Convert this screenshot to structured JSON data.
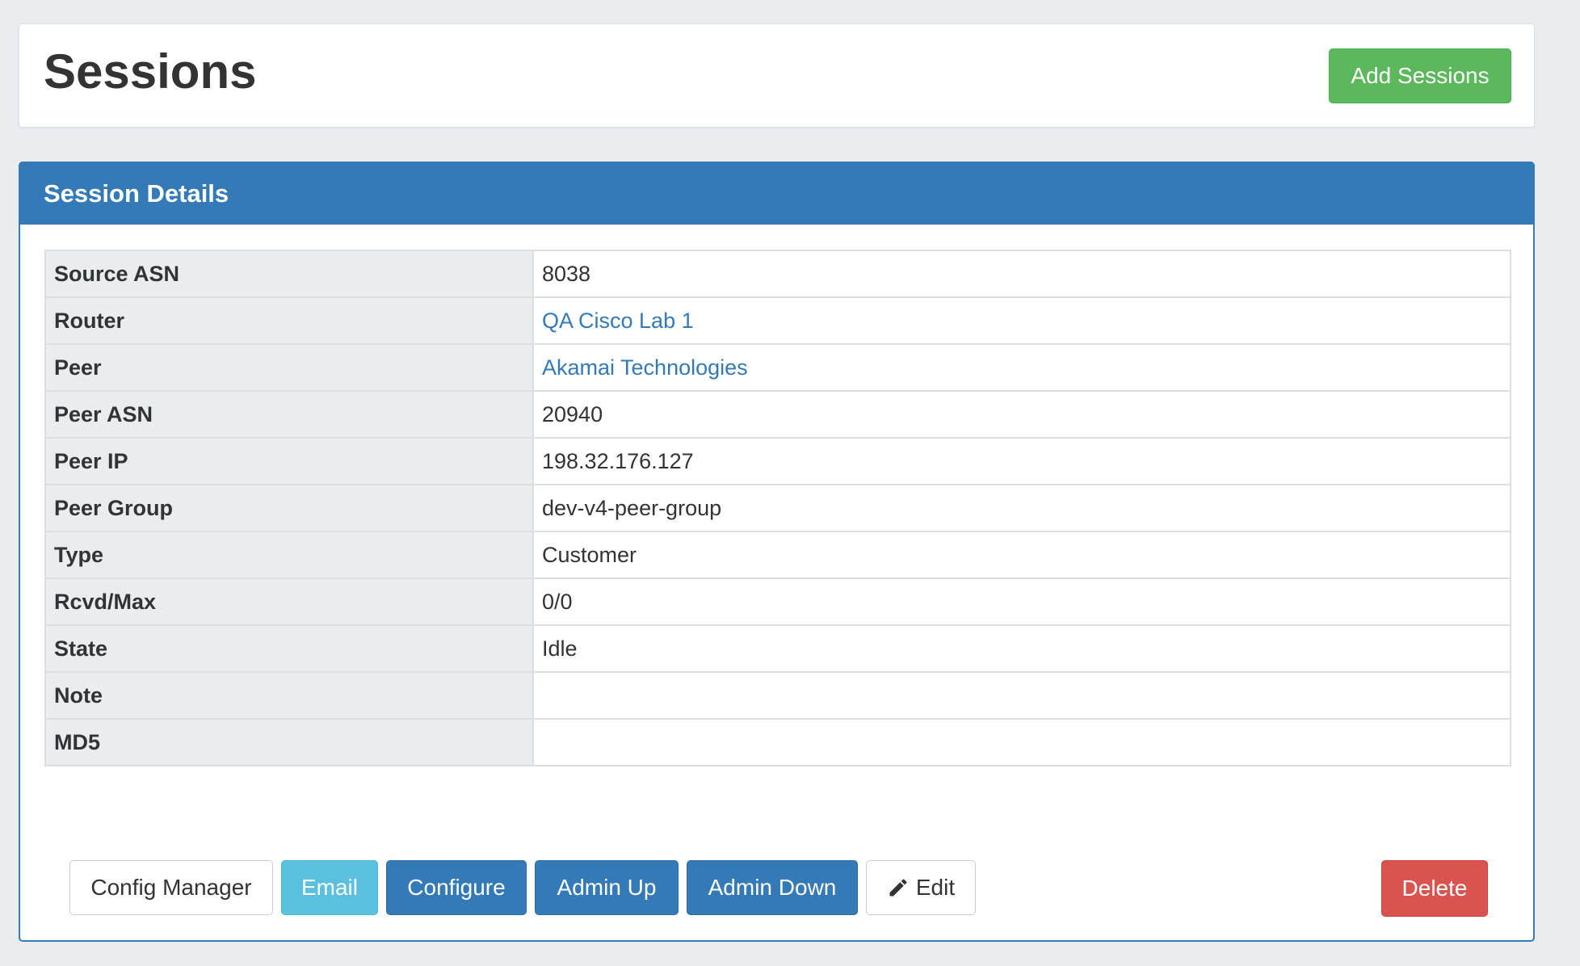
{
  "header": {
    "title": "Sessions",
    "add_button": "Add Sessions"
  },
  "panel": {
    "title": "Session Details",
    "rows": [
      {
        "label": "Source ASN",
        "value": "8038",
        "link": false
      },
      {
        "label": "Router",
        "value": "QA Cisco Lab 1",
        "link": true
      },
      {
        "label": "Peer",
        "value": "Akamai Technologies",
        "link": true
      },
      {
        "label": "Peer ASN",
        "value": "20940",
        "link": false
      },
      {
        "label": "Peer IP",
        "value": "198.32.176.127",
        "link": false
      },
      {
        "label": "Peer Group",
        "value": "dev-v4-peer-group",
        "link": false
      },
      {
        "label": "Type",
        "value": "Customer",
        "link": false
      },
      {
        "label": "Rcvd/Max",
        "value": "0/0",
        "link": false
      },
      {
        "label": "State",
        "value": "Idle",
        "link": false
      },
      {
        "label": "Note",
        "value": "",
        "link": false
      },
      {
        "label": "MD5",
        "value": "",
        "link": false
      }
    ]
  },
  "actions": {
    "config_manager": "Config Manager",
    "email": "Email",
    "configure": "Configure",
    "admin_up": "Admin Up",
    "admin_down": "Admin Down",
    "edit": "Edit",
    "delete": "Delete",
    "edit_icon": "pencil-icon"
  },
  "colors": {
    "primary": "#337ab7",
    "success": "#5cb85c",
    "info": "#5bc0de",
    "danger": "#d9534f"
  }
}
